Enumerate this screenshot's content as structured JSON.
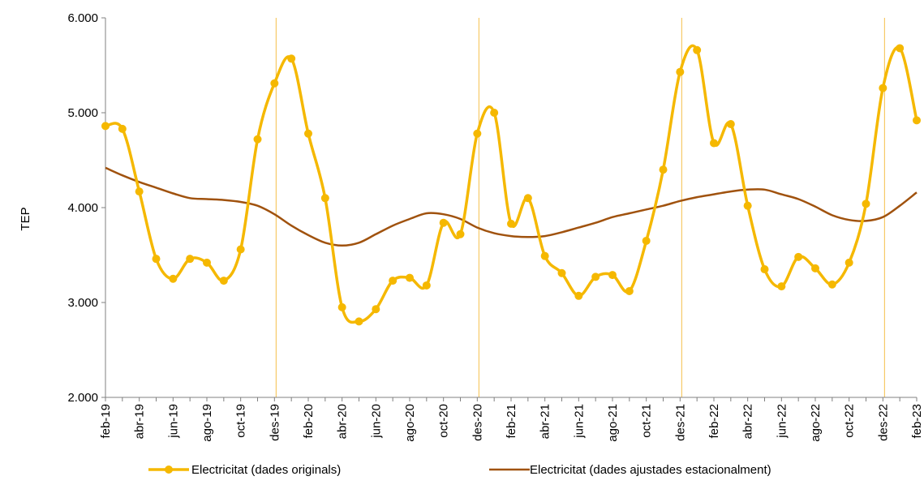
{
  "chart_data": {
    "type": "line",
    "title": "",
    "xlabel": "",
    "ylabel": "TEP",
    "ylim": [
      2000,
      6000
    ],
    "yticks": [
      2000,
      3000,
      4000,
      5000,
      6000
    ],
    "ytick_labels": [
      "2.000",
      "3.000",
      "4.000",
      "5.000",
      "6.000"
    ],
    "grid": false,
    "legend_position": "bottom",
    "x": [
      "feb-19",
      "mar-19",
      "abr-19",
      "mai-19",
      "jun-19",
      "jul-19",
      "ago-19",
      "set-19",
      "oct-19",
      "nov-19",
      "des-19",
      "gen-20",
      "feb-20",
      "mar-20",
      "abr-20",
      "mai-20",
      "jun-20",
      "jul-20",
      "ago-20",
      "set-20",
      "oct-20",
      "nov-20",
      "des-20",
      "gen-21",
      "feb-21",
      "mar-21",
      "abr-21",
      "mai-21",
      "jun-21",
      "jul-21",
      "ago-21",
      "set-21",
      "oct-21",
      "nov-21",
      "des-21",
      "gen-22",
      "feb-22",
      "mar-22",
      "abr-22",
      "mai-22",
      "jun-22",
      "jul-22",
      "ago-22",
      "set-22",
      "oct-22",
      "nov-22",
      "des-22",
      "gen-23",
      "feb-23"
    ],
    "xtick_labels": [
      "feb-19",
      "abr-19",
      "jun-19",
      "ago-19",
      "oct-19",
      "des-19",
      "feb-20",
      "abr-20",
      "jun-20",
      "ago-20",
      "oct-20",
      "des-20",
      "feb-21",
      "abr-21",
      "jun-21",
      "ago-21",
      "oct-21",
      "des-21",
      "feb-22",
      "abr-22",
      "jun-22",
      "ago-22",
      "oct-22",
      "des-22",
      "feb-23"
    ],
    "vertical_markers": [
      "des-19",
      "des-20",
      "des-21",
      "des-22"
    ],
    "series": [
      {
        "name": "Electricitat (dades originals)",
        "color": "#F5B800",
        "marker": "circle",
        "values": [
          4860,
          4830,
          4170,
          3460,
          3250,
          3460,
          3420,
          3230,
          3560,
          4720,
          5310,
          5570,
          4780,
          4100,
          2950,
          2800,
          2930,
          3230,
          3260,
          3180,
          3840,
          3720,
          4780,
          5000,
          3830,
          4100,
          3490,
          3310,
          3070,
          3270,
          3290,
          3120,
          3650,
          4400,
          5430,
          5660,
          4680,
          4880,
          4020,
          3350,
          3170,
          3480,
          3360,
          3190,
          3420,
          4040,
          5260,
          5680,
          4920
        ]
      },
      {
        "name": "Electricitat (dades ajustades estacionalment)",
        "color": "#A0520E",
        "marker": "none",
        "values": [
          4420,
          4340,
          4270,
          4210,
          4150,
          4100,
          4090,
          4080,
          4060,
          4020,
          3930,
          3810,
          3710,
          3630,
          3600,
          3630,
          3720,
          3810,
          3880,
          3940,
          3930,
          3880,
          3790,
          3730,
          3700,
          3690,
          3700,
          3740,
          3790,
          3840,
          3900,
          3940,
          3980,
          4020,
          4070,
          4110,
          4140,
          4170,
          4190,
          4190,
          4140,
          4090,
          4010,
          3920,
          3870,
          3860,
          3900,
          4020,
          4160
        ]
      }
    ]
  }
}
